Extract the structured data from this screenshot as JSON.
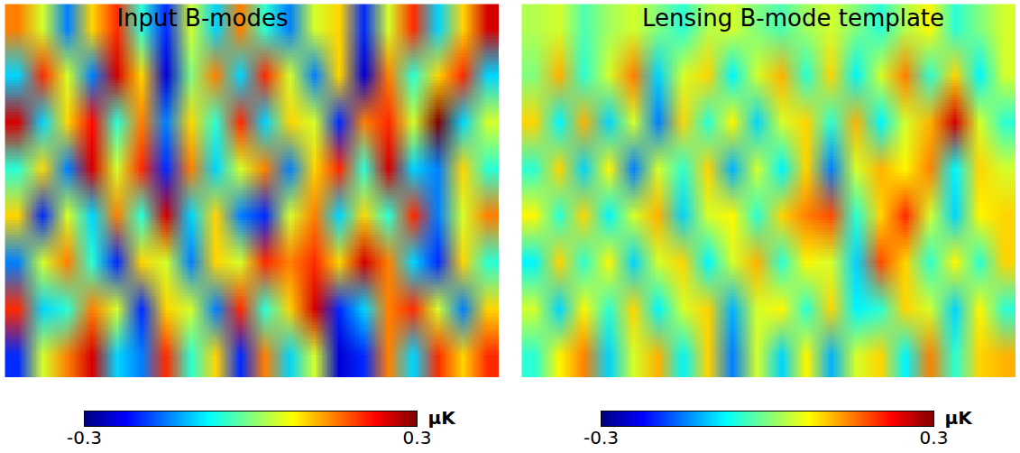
{
  "chart_data": [
    {
      "type": "heatmap",
      "title": "Input B-modes",
      "color": "jet",
      "tick_labels": false,
      "colorbar": {
        "range": [
          -0.3,
          0.3
        ],
        "ticks": [
          -0.3,
          0.3
        ],
        "label": "μK"
      },
      "cells": [
        [
          0.15,
          0.05,
          -0.15,
          0.1,
          0.2,
          -0.05,
          -0.2,
          0.05,
          -0.1,
          0.15,
          -0.05,
          -0.15,
          0.05,
          0.1,
          -0.2,
          0.05,
          0.2,
          -0.1,
          0.1,
          0.25
        ],
        [
          -0.1,
          0.2,
          0.05,
          -0.15,
          0.25,
          0.1,
          -0.25,
          0.0,
          0.15,
          -0.1,
          0.2,
          0.05,
          -0.15,
          0.1,
          -0.25,
          0.15,
          -0.05,
          0.1,
          0.2,
          -0.1
        ],
        [
          0.25,
          -0.1,
          0.1,
          0.22,
          -0.05,
          0.15,
          -0.15,
          0.1,
          -0.05,
          0.2,
          -0.1,
          0.1,
          0.05,
          -0.2,
          0.15,
          0.2,
          0.05,
          0.3,
          -0.1,
          0.05
        ],
        [
          -0.05,
          0.1,
          -0.15,
          0.25,
          0.05,
          0.2,
          -0.2,
          0.15,
          -0.1,
          0.05,
          0.15,
          -0.15,
          0.1,
          0.2,
          -0.05,
          0.25,
          -0.1,
          -0.15,
          0.1,
          -0.05
        ],
        [
          0.1,
          -0.2,
          0.05,
          -0.1,
          0.15,
          -0.05,
          0.25,
          -0.1,
          0.1,
          -0.15,
          -0.2,
          0.05,
          0.15,
          -0.1,
          0.1,
          -0.05,
          0.2,
          -0.15,
          0.05,
          0.15
        ],
        [
          -0.15,
          0.05,
          0.15,
          -0.05,
          -0.2,
          0.1,
          0.05,
          -0.15,
          0.1,
          0.05,
          0.2,
          0.15,
          0.2,
          0.1,
          0.25,
          0.15,
          -0.1,
          -0.2,
          0.1,
          -0.05
        ],
        [
          0.2,
          -0.1,
          -0.05,
          0.15,
          0.05,
          -0.2,
          0.1,
          0.05,
          -0.15,
          0.2,
          -0.05,
          0.1,
          0.25,
          -0.2,
          -0.1,
          0.15,
          0.2,
          0.05,
          -0.15,
          0.1
        ],
        [
          -0.2,
          0.05,
          0.15,
          0.25,
          -0.1,
          -0.15,
          0.2,
          -0.05,
          0.1,
          -0.2,
          0.15,
          -0.1,
          0.05,
          -0.25,
          -0.2,
          0.15,
          -0.1,
          0.2,
          0.1,
          0.2
        ]
      ]
    },
    {
      "type": "heatmap",
      "title": "Lensing B-mode template",
      "color": "jet",
      "tick_labels": false,
      "colorbar": {
        "range": [
          -0.3,
          0.3
        ],
        "ticks": [
          -0.3,
          0.3
        ],
        "label": "μK"
      },
      "cells": [
        [
          0.03,
          0.05,
          -0.03,
          0.02,
          0.05,
          0.0,
          -0.05,
          0.03,
          0.05,
          0.0,
          -0.03,
          0.02,
          0.05,
          0.0,
          -0.05,
          0.03,
          0.08,
          -0.05,
          0.0,
          0.05
        ],
        [
          0.0,
          0.12,
          -0.05,
          0.05,
          0.15,
          -0.1,
          0.05,
          0.1,
          -0.08,
          0.05,
          0.12,
          -0.05,
          0.1,
          -0.08,
          0.05,
          0.15,
          -0.05,
          0.1,
          -0.08,
          0.05
        ],
        [
          0.1,
          -0.08,
          0.12,
          -0.1,
          0.05,
          -0.15,
          0.1,
          -0.05,
          0.08,
          -0.1,
          0.05,
          0.1,
          -0.05,
          0.12,
          -0.08,
          0.05,
          0.12,
          0.25,
          0.05,
          -0.05
        ],
        [
          -0.05,
          0.1,
          -0.1,
          0.08,
          -0.15,
          0.05,
          -0.05,
          0.1,
          -0.12,
          0.05,
          -0.08,
          0.1,
          -0.15,
          0.05,
          0.12,
          0.08,
          0.15,
          -0.08,
          0.1,
          0.05
        ],
        [
          0.08,
          -0.05,
          0.1,
          -0.08,
          0.05,
          0.12,
          -0.1,
          0.05,
          0.08,
          -0.05,
          0.1,
          0.15,
          0.18,
          -0.05,
          0.1,
          0.2,
          0.05,
          -0.1,
          0.08,
          0.1
        ],
        [
          -0.08,
          0.1,
          -0.05,
          0.08,
          -0.1,
          0.05,
          0.1,
          -0.08,
          0.05,
          0.12,
          -0.05,
          0.08,
          0.05,
          -0.1,
          0.18,
          0.1,
          -0.05,
          0.08,
          -0.05,
          0.1
        ],
        [
          0.05,
          -0.1,
          0.08,
          -0.05,
          0.1,
          -0.08,
          0.05,
          0.1,
          -0.12,
          0.05,
          0.08,
          -0.05,
          0.1,
          -0.08,
          -0.05,
          0.1,
          0.05,
          -0.1,
          0.08,
          -0.05
        ],
        [
          -0.05,
          0.08,
          0.15,
          -0.1,
          0.05,
          0.12,
          -0.08,
          0.1,
          -0.15,
          0.05,
          -0.1,
          0.08,
          -0.12,
          0.05,
          0.1,
          -0.08,
          0.15,
          -0.05,
          0.1,
          0.12
        ]
      ]
    }
  ]
}
